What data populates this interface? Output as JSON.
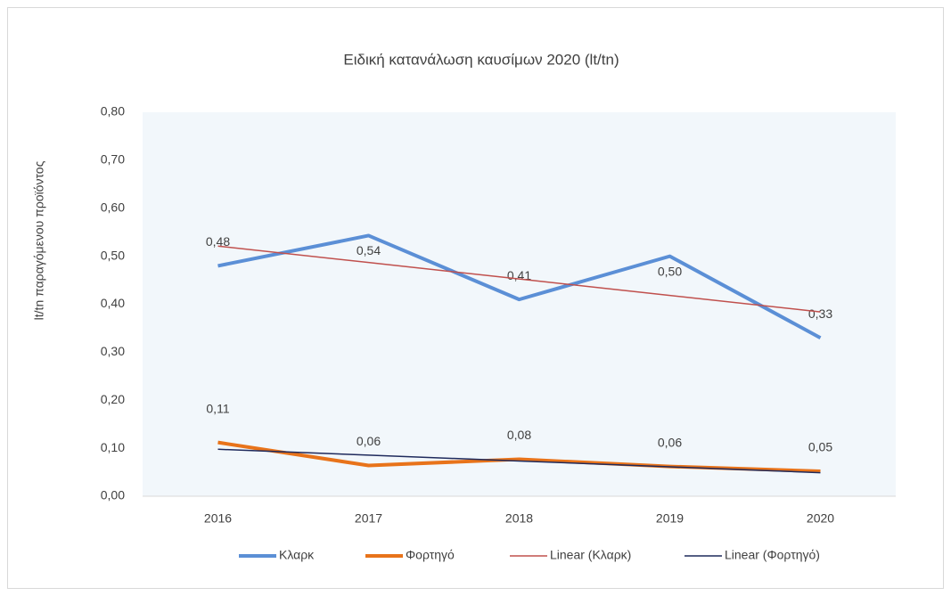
{
  "chart_data": {
    "type": "line",
    "title": "Ειδική κατανάλωση καυσίμων 2020 (lt/tn)",
    "y_label": "lt/tn παραγόμενου προϊόντος",
    "categories": [
      "2016",
      "2017",
      "2018",
      "2019",
      "2020"
    ],
    "series": [
      {
        "name": "Κλαρκ",
        "color": "#5b8fd6",
        "values": [
          0.48,
          0.543,
          0.41,
          0.5,
          0.33
        ],
        "value_labels": [
          "0,48",
          "0,54",
          "0,41",
          "0,50",
          "0,33"
        ]
      },
      {
        "name": "Φορτηγό",
        "color": "#e8731a",
        "values": [
          0.112,
          0.064,
          0.077,
          0.062,
          0.052
        ],
        "value_labels": [
          "0,11",
          "0,06",
          "0,08",
          "0,06",
          "0,05"
        ]
      },
      {
        "name": "Linear (Κλαρκ)",
        "color": "#c0504d",
        "values": [
          0.5212,
          0.4869,
          0.4526,
          0.4183,
          0.384
        ]
      },
      {
        "name": "Linear (Φορτηγό)",
        "color": "#1f2a5c",
        "values": [
          0.0978,
          0.0856,
          0.0734,
          0.0612,
          0.049
        ]
      }
    ],
    "ylim": [
      0,
      0.8
    ],
    "yticks": [
      {
        "value": 0,
        "label": "0,00"
      },
      {
        "value": 0.1,
        "label": "0,10"
      },
      {
        "value": 0.2,
        "label": "0,20"
      },
      {
        "value": 0.3,
        "label": "0,30"
      },
      {
        "value": 0.4,
        "label": "0,40"
      },
      {
        "value": 0.5,
        "label": "0,50"
      },
      {
        "value": 0.6,
        "label": "0,60"
      },
      {
        "value": 0.7,
        "label": "0,70"
      },
      {
        "value": 0.8,
        "label": "0,80"
      }
    ],
    "legend": "bottom"
  }
}
